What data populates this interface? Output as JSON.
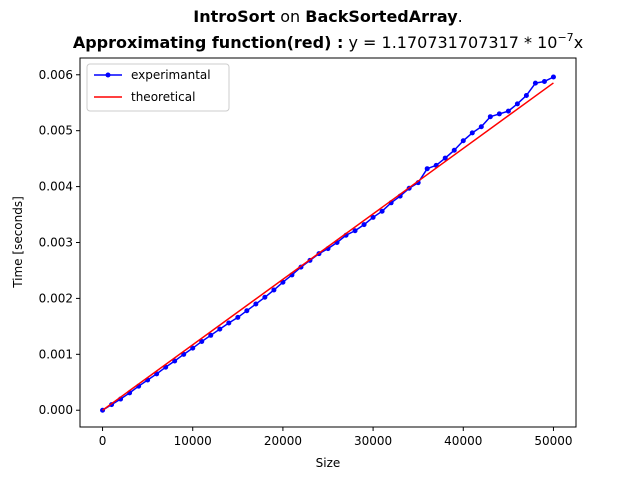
{
  "chart_data": {
    "type": "line",
    "title": {
      "line1": {
        "algorithm": "IntroSort",
        "connector": " on ",
        "array": "BackSortedArray",
        "end": "."
      },
      "line2": {
        "prefix": "Approximating function(red) :",
        "formula": " y = 1.170731707317 * 10",
        "exponent": "−7",
        "suffix": "x"
      }
    },
    "xlabel": "Size",
    "ylabel": "Time [seconds]",
    "xlim": [
      -2500,
      52500
    ],
    "ylim": [
      -0.0003,
      0.0063
    ],
    "xticks": [
      0,
      10000,
      20000,
      30000,
      40000,
      50000
    ],
    "xtick_labels": [
      "0",
      "10000",
      "20000",
      "30000",
      "40000",
      "50000"
    ],
    "yticks": [
      0,
      0.001,
      0.002,
      0.003,
      0.004,
      0.005,
      0.006
    ],
    "ytick_labels": [
      "0.000",
      "0.001",
      "0.002",
      "0.003",
      "0.004",
      "0.005",
      "0.006"
    ],
    "grid": false,
    "legend_position": "top-left",
    "series": [
      {
        "name": "experimantal",
        "color": "#0000ff",
        "marker": "circle",
        "x": [
          0,
          1000,
          2000,
          3000,
          4000,
          5000,
          6000,
          7000,
          8000,
          9000,
          10000,
          11000,
          12000,
          13000,
          14000,
          15000,
          16000,
          17000,
          18000,
          19000,
          20000,
          21000,
          22000,
          23000,
          24000,
          25000,
          26000,
          27000,
          28000,
          29000,
          30000,
          31000,
          32000,
          33000,
          34000,
          35000,
          36000,
          37000,
          38000,
          39000,
          40000,
          41000,
          42000,
          43000,
          44000,
          45000,
          46000,
          47000,
          48000,
          49000,
          50000
        ],
        "y": [
          0.0,
          0.0001,
          0.0002,
          0.00031,
          0.00043,
          0.00054,
          0.00065,
          0.00077,
          0.00088,
          0.001,
          0.00111,
          0.00123,
          0.00134,
          0.00145,
          0.00156,
          0.00166,
          0.00178,
          0.0019,
          0.00202,
          0.00215,
          0.00229,
          0.00242,
          0.00256,
          0.00268,
          0.0028,
          0.00289,
          0.003,
          0.00313,
          0.00321,
          0.00332,
          0.00345,
          0.00356,
          0.00371,
          0.00383,
          0.00397,
          0.00407,
          0.00432,
          0.00438,
          0.00451,
          0.00465,
          0.00482,
          0.00496,
          0.00507,
          0.00525,
          0.0053,
          0.00535,
          0.00548,
          0.00563,
          0.00585,
          0.00588,
          0.00596
        ]
      },
      {
        "name": "theoretical",
        "color": "#ff0000",
        "marker": "none",
        "x": [
          0,
          50000
        ],
        "y": [
          0.0,
          0.0058536585
        ]
      }
    ]
  }
}
